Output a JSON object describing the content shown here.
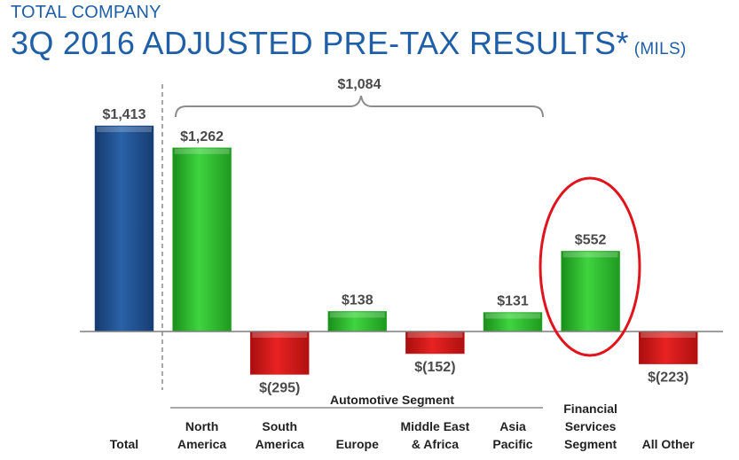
{
  "header": {
    "subtitle": "TOTAL COMPANY",
    "title": "3Q 2016 ADJUSTED PRE-TAX RESULTS*",
    "unit": "(MILS)"
  },
  "chart_data": {
    "type": "bar",
    "title": "3Q 2016 ADJUSTED PRE-TAX RESULTS*",
    "unit": "(MILS)",
    "categories": [
      [
        "Total"
      ],
      [
        "North",
        "America"
      ],
      [
        "South",
        "America"
      ],
      [
        "Europe"
      ],
      [
        "Middle East",
        "& Africa"
      ],
      [
        "Asia",
        "Pacific"
      ],
      [
        "Financial",
        "Services",
        "Segment"
      ],
      [
        "All Other"
      ]
    ],
    "values": [
      1413,
      1262,
      -295,
      138,
      -152,
      131,
      552,
      -223
    ],
    "value_labels": [
      "$1,413",
      "$1,262",
      "$(295)",
      "$138",
      "$(152)",
      "$131",
      "$552",
      "$(223)"
    ],
    "bar_colors": [
      "#1f4e8c",
      "#2db82d",
      "#d41515",
      "#2db82d",
      "#d41515",
      "#2db82d",
      "#2db82d",
      "#d41515"
    ],
    "group": {
      "label": "Automotive Segment",
      "start_index": 1,
      "end_index": 5,
      "total_label": "$1,084"
    },
    "highlight_index": 6,
    "highlight_color": "#e0141c"
  }
}
